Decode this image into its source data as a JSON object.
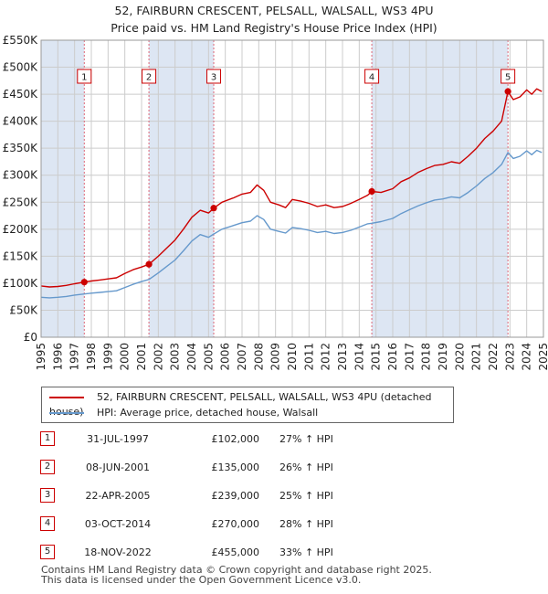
{
  "chart_data": {
    "type": "line",
    "title": "52, FAIRBURN CRESCENT, PELSALL, WALSALL, WS3 4PU",
    "subtitle": "Price paid vs. HM Land Registry's House Price Index (HPI)",
    "xlim": [
      1995,
      2025
    ],
    "ylim": [
      0,
      550000
    ],
    "x_ticks": [
      "1995",
      "1996",
      "1997",
      "1998",
      "1999",
      "2000",
      "2001",
      "2002",
      "2003",
      "2004",
      "2005",
      "2006",
      "2007",
      "2008",
      "2009",
      "2010",
      "2011",
      "2012",
      "2013",
      "2014",
      "2015",
      "2016",
      "2017",
      "2018",
      "2019",
      "2020",
      "2021",
      "2022",
      "2023",
      "2024",
      "2025"
    ],
    "y_ticks": [
      {
        "value": 0,
        "label": "£0"
      },
      {
        "value": 50000,
        "label": "£50K"
      },
      {
        "value": 100000,
        "label": "£100K"
      },
      {
        "value": 150000,
        "label": "£150K"
      },
      {
        "value": 200000,
        "label": "£200K"
      },
      {
        "value": 250000,
        "label": "£250K"
      },
      {
        "value": 300000,
        "label": "£300K"
      },
      {
        "value": 350000,
        "label": "£350K"
      },
      {
        "value": 400000,
        "label": "£400K"
      },
      {
        "value": 450000,
        "label": "£450K"
      },
      {
        "value": 500000,
        "label": "£500K"
      },
      {
        "value": 550000,
        "label": "£550K"
      }
    ],
    "series": [
      {
        "name": "52, FAIRBURN CRESCENT, PELSALL, WALSALL, WS3 4PU (detached house)",
        "color": "#cc0000",
        "x": [
          1995,
          1995.5,
          1996,
          1996.5,
          1997,
          1997.58,
          1998,
          1998.5,
          1999,
          1999.5,
          2000,
          2000.5,
          2001,
          2001.44,
          2002,
          2002.5,
          2003,
          2003.5,
          2004,
          2004.5,
          2005,
          2005.31,
          2005.8,
          2006.5,
          2007,
          2007.5,
          2007.9,
          2008.3,
          2008.7,
          2009.2,
          2009.6,
          2010,
          2010.5,
          2011,
          2011.5,
          2012,
          2012.5,
          2013,
          2013.5,
          2014,
          2014.5,
          2014.75,
          2015.3,
          2016,
          2016.5,
          2017,
          2017.5,
          2018,
          2018.5,
          2019,
          2019.5,
          2020,
          2020.5,
          2021,
          2021.5,
          2022,
          2022.5,
          2022.88,
          2023.2,
          2023.6,
          2024,
          2024.3,
          2024.6,
          2024.9
        ],
        "values": [
          95000,
          93000,
          94000,
          96000,
          99000,
          102000,
          104000,
          106000,
          108000,
          110000,
          118000,
          125000,
          130000,
          135000,
          150000,
          165000,
          180000,
          200000,
          222000,
          235000,
          230000,
          239000,
          250000,
          258000,
          265000,
          268000,
          282000,
          272000,
          250000,
          245000,
          240000,
          255000,
          252000,
          248000,
          242000,
          245000,
          240000,
          242000,
          248000,
          255000,
          263000,
          270000,
          268000,
          275000,
          288000,
          295000,
          305000,
          312000,
          318000,
          320000,
          325000,
          322000,
          335000,
          350000,
          368000,
          382000,
          400000,
          455000,
          440000,
          445000,
          458000,
          450000,
          460000,
          455000
        ]
      },
      {
        "name": "HPI: Average price, detached house, Walsall",
        "color": "#6699cc",
        "x": [
          1995,
          1995.5,
          1996,
          1996.5,
          1997,
          1997.58,
          1998,
          1998.5,
          1999,
          1999.5,
          2000,
          2000.5,
          2001,
          2001.44,
          2002,
          2002.5,
          2003,
          2003.5,
          2004,
          2004.5,
          2005,
          2005.31,
          2005.8,
          2006.5,
          2007,
          2007.5,
          2007.9,
          2008.3,
          2008.7,
          2009.2,
          2009.6,
          2010,
          2010.5,
          2011,
          2011.5,
          2012,
          2012.5,
          2013,
          2013.5,
          2014,
          2014.5,
          2014.75,
          2015.3,
          2016,
          2016.5,
          2017,
          2017.5,
          2018,
          2018.5,
          2019,
          2019.5,
          2020,
          2020.5,
          2021,
          2021.5,
          2022,
          2022.5,
          2022.88,
          2023.2,
          2023.6,
          2024,
          2024.3,
          2024.6,
          2024.9
        ],
        "values": [
          74000,
          73000,
          74000,
          75500,
          78000,
          80000,
          81500,
          83000,
          84500,
          86000,
          92000,
          98000,
          103000,
          107000,
          119000,
          131000,
          143000,
          160000,
          178000,
          190000,
          185000,
          191000,
          200000,
          207000,
          212000,
          215000,
          225000,
          218000,
          200000,
          196000,
          193000,
          203000,
          201000,
          198000,
          194000,
          196000,
          192000,
          194000,
          198000,
          204000,
          210000,
          211000,
          214000,
          220000,
          229000,
          236000,
          243000,
          249000,
          254000,
          256000,
          260000,
          258000,
          268000,
          280000,
          294000,
          305000,
          320000,
          342000,
          331000,
          335000,
          345000,
          338000,
          346000,
          342000
        ]
      }
    ],
    "sales": [
      {
        "label": "1",
        "x": 1997.58,
        "value": 102000
      },
      {
        "label": "2",
        "x": 2001.44,
        "value": 135000
      },
      {
        "label": "3",
        "x": 2005.31,
        "value": 239000
      },
      {
        "label": "4",
        "x": 2014.75,
        "value": 270000
      },
      {
        "label": "5",
        "x": 2022.88,
        "value": 455000
      }
    ],
    "shaded_regions": [
      {
        "from": 1995,
        "to": 1997.58
      },
      {
        "from": 2001.44,
        "to": 2005.31
      },
      {
        "from": 2014.75,
        "to": 2022.88
      }
    ],
    "legend": "below-chart"
  },
  "title_line1": "52, FAIRBURN CRESCENT, PELSALL, WALSALL, WS3 4PU",
  "title_line2": "Price paid vs. HM Land Registry's House Price Index (HPI)",
  "legend": {
    "property": "52, FAIRBURN CRESCENT, PELSALL, WALSALL, WS3 4PU (detached house)",
    "hpi": "HPI: Average price, detached house, Walsall"
  },
  "colors": {
    "property": "#cc0000",
    "hpi": "#6699cc",
    "shade": "#dde6f3",
    "grid": "#cccccc"
  },
  "sales_table": [
    {
      "num": "1",
      "date": "31-JUL-1997",
      "price": "£102,000",
      "hpi": "27% ↑ HPI"
    },
    {
      "num": "2",
      "date": "08-JUN-2001",
      "price": "£135,000",
      "hpi": "26% ↑ HPI"
    },
    {
      "num": "3",
      "date": "22-APR-2005",
      "price": "£239,000",
      "hpi": "25% ↑ HPI"
    },
    {
      "num": "4",
      "date": "03-OCT-2014",
      "price": "£270,000",
      "hpi": "28% ↑ HPI"
    },
    {
      "num": "5",
      "date": "18-NOV-2022",
      "price": "£455,000",
      "hpi": "33% ↑ HPI"
    }
  ],
  "footer": {
    "line1": "Contains HM Land Registry data © Crown copyright and database right 2025.",
    "line2": "This data is licensed under the Open Government Licence v3.0."
  }
}
